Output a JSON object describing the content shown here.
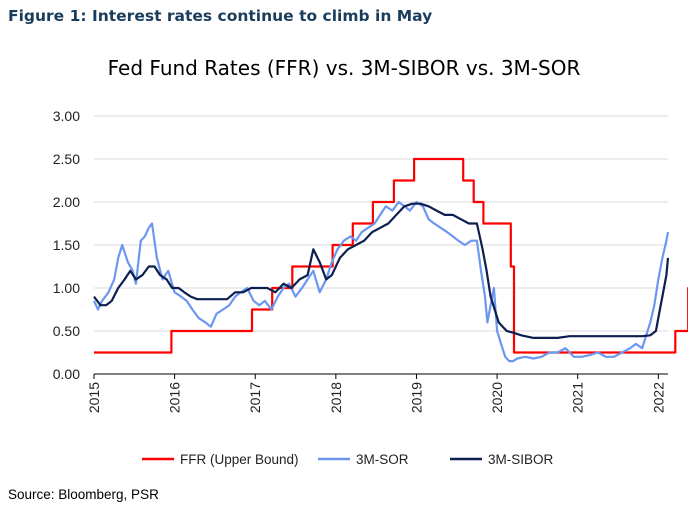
{
  "caption": "Figure 1: Interest rates continue to climb in May",
  "source": "Source: Bloomberg, PSR",
  "chart_data": {
    "type": "line",
    "title": "Fed Fund Rates (FFR) vs. 3M-SIBOR vs. 3M-SOR",
    "xlabel": "",
    "ylabel": "",
    "xlim": [
      2015.0,
      2022.12
    ],
    "ylim": [
      0,
      3
    ],
    "yticks": [
      "0.00",
      "0.50",
      "1.00",
      "1.50",
      "2.00",
      "2.50",
      "3.00"
    ],
    "xticks": [
      "2015",
      "2016",
      "2017",
      "2018",
      "2019",
      "2020",
      "2021",
      "2022"
    ],
    "grid": "horizontal",
    "legend": "bottom",
    "series": [
      {
        "name": "FFR (Upper Bound)",
        "color": "#ff0000",
        "step": true,
        "x": [
          2015.0,
          2015.96,
          2016.96,
          2017.21,
          2017.46,
          2017.96,
          2018.21,
          2018.46,
          2018.72,
          2018.97,
          2019.58,
          2019.71,
          2019.83,
          2020.17,
          2020.21,
          2022.21,
          2022.37,
          2022.45
        ],
        "y": [
          0.25,
          0.5,
          0.75,
          1.0,
          1.25,
          1.5,
          1.75,
          2.0,
          2.25,
          2.5,
          2.25,
          2.0,
          1.75,
          1.25,
          0.25,
          0.5,
          1.0,
          1.0
        ]
      },
      {
        "name": "3M-SOR",
        "color": "#6c97f0",
        "x": [
          2015.0,
          2015.05,
          2015.1,
          2015.18,
          2015.25,
          2015.3,
          2015.35,
          2015.42,
          2015.48,
          2015.52,
          2015.58,
          2015.63,
          2015.68,
          2015.72,
          2015.78,
          2015.85,
          2015.92,
          2016.0,
          2016.08,
          2016.15,
          2016.22,
          2016.3,
          2016.38,
          2016.45,
          2016.52,
          2016.6,
          2016.68,
          2016.75,
          2016.82,
          2016.9,
          2016.98,
          2017.05,
          2017.12,
          2017.2,
          2017.28,
          2017.35,
          2017.42,
          2017.5,
          2017.58,
          2017.65,
          2017.72,
          2017.8,
          2017.88,
          2017.95,
          2018.02,
          2018.1,
          2018.18,
          2018.25,
          2018.32,
          2018.4,
          2018.48,
          2018.55,
          2018.62,
          2018.7,
          2018.78,
          2018.85,
          2018.92,
          2019.0,
          2019.08,
          2019.15,
          2019.22,
          2019.3,
          2019.38,
          2019.45,
          2019.52,
          2019.6,
          2019.68,
          2019.75,
          2019.8,
          2019.85,
          2019.88,
          2019.92,
          2019.96,
          2020.0,
          2020.05,
          2020.1,
          2020.15,
          2020.2,
          2020.25,
          2020.35,
          2020.45,
          2020.55,
          2020.65,
          2020.75,
          2020.85,
          2020.95,
          2021.05,
          2021.15,
          2021.25,
          2021.35,
          2021.45,
          2021.55,
          2021.65,
          2021.72,
          2021.8,
          2021.85,
          2021.9,
          2021.95,
          2022.0,
          2022.05,
          2022.1,
          2022.12
        ],
        "y": [
          0.85,
          0.75,
          0.85,
          0.95,
          1.1,
          1.35,
          1.5,
          1.3,
          1.2,
          1.05,
          1.55,
          1.6,
          1.7,
          1.75,
          1.35,
          1.1,
          1.2,
          0.95,
          0.9,
          0.85,
          0.75,
          0.65,
          0.6,
          0.55,
          0.7,
          0.75,
          0.8,
          0.9,
          0.95,
          1.0,
          0.85,
          0.8,
          0.85,
          0.75,
          0.9,
          1.0,
          1.05,
          0.9,
          1.0,
          1.1,
          1.2,
          0.95,
          1.1,
          1.3,
          1.45,
          1.55,
          1.6,
          1.55,
          1.65,
          1.7,
          1.75,
          1.85,
          1.95,
          1.9,
          2.0,
          1.95,
          1.9,
          2.0,
          1.95,
          1.8,
          1.75,
          1.7,
          1.65,
          1.6,
          1.55,
          1.5,
          1.55,
          1.55,
          1.2,
          0.9,
          0.6,
          0.8,
          1.0,
          0.5,
          0.35,
          0.2,
          0.15,
          0.15,
          0.18,
          0.2,
          0.18,
          0.2,
          0.25,
          0.25,
          0.3,
          0.2,
          0.2,
          0.22,
          0.25,
          0.2,
          0.2,
          0.25,
          0.3,
          0.35,
          0.3,
          0.45,
          0.6,
          0.8,
          1.1,
          1.35,
          1.55,
          1.65
        ]
      },
      {
        "name": "3M-SIBOR",
        "color": "#0d1f4f",
        "x": [
          2015.0,
          2015.08,
          2015.15,
          2015.22,
          2015.3,
          2015.38,
          2015.45,
          2015.52,
          2015.6,
          2015.68,
          2015.75,
          2015.82,
          2015.9,
          2015.97,
          2016.05,
          2016.12,
          2016.2,
          2016.28,
          2016.35,
          2016.45,
          2016.55,
          2016.65,
          2016.75,
          2016.85,
          2016.95,
          2017.05,
          2017.15,
          2017.25,
          2017.35,
          2017.45,
          2017.55,
          2017.65,
          2017.72,
          2017.8,
          2017.88,
          2017.95,
          2018.05,
          2018.15,
          2018.25,
          2018.35,
          2018.45,
          2018.55,
          2018.65,
          2018.75,
          2018.85,
          2018.95,
          2019.05,
          2019.15,
          2019.25,
          2019.35,
          2019.45,
          2019.55,
          2019.65,
          2019.75,
          2019.82,
          2019.87,
          2019.92,
          2019.97,
          2020.02,
          2020.07,
          2020.12,
          2020.2,
          2020.3,
          2020.45,
          2020.6,
          2020.75,
          2020.9,
          2021.05,
          2021.2,
          2021.35,
          2021.5,
          2021.65,
          2021.8,
          2021.9,
          2021.97,
          2022.02,
          2022.07,
          2022.1,
          2022.12
        ],
        "y": [
          0.9,
          0.8,
          0.8,
          0.85,
          1.0,
          1.1,
          1.2,
          1.1,
          1.15,
          1.25,
          1.25,
          1.15,
          1.1,
          1.0,
          1.0,
          0.95,
          0.9,
          0.87,
          0.87,
          0.87,
          0.87,
          0.87,
          0.95,
          0.95,
          1.0,
          1.0,
          1.0,
          0.95,
          1.05,
          1.0,
          1.1,
          1.15,
          1.45,
          1.3,
          1.1,
          1.15,
          1.35,
          1.45,
          1.5,
          1.55,
          1.65,
          1.7,
          1.75,
          1.85,
          1.95,
          1.98,
          1.98,
          1.95,
          1.9,
          1.85,
          1.85,
          1.8,
          1.75,
          1.75,
          1.45,
          1.2,
          0.9,
          0.75,
          0.6,
          0.55,
          0.5,
          0.48,
          0.45,
          0.42,
          0.42,
          0.42,
          0.44,
          0.44,
          0.44,
          0.44,
          0.44,
          0.44,
          0.44,
          0.45,
          0.5,
          0.75,
          1.0,
          1.15,
          1.35
        ]
      }
    ]
  }
}
